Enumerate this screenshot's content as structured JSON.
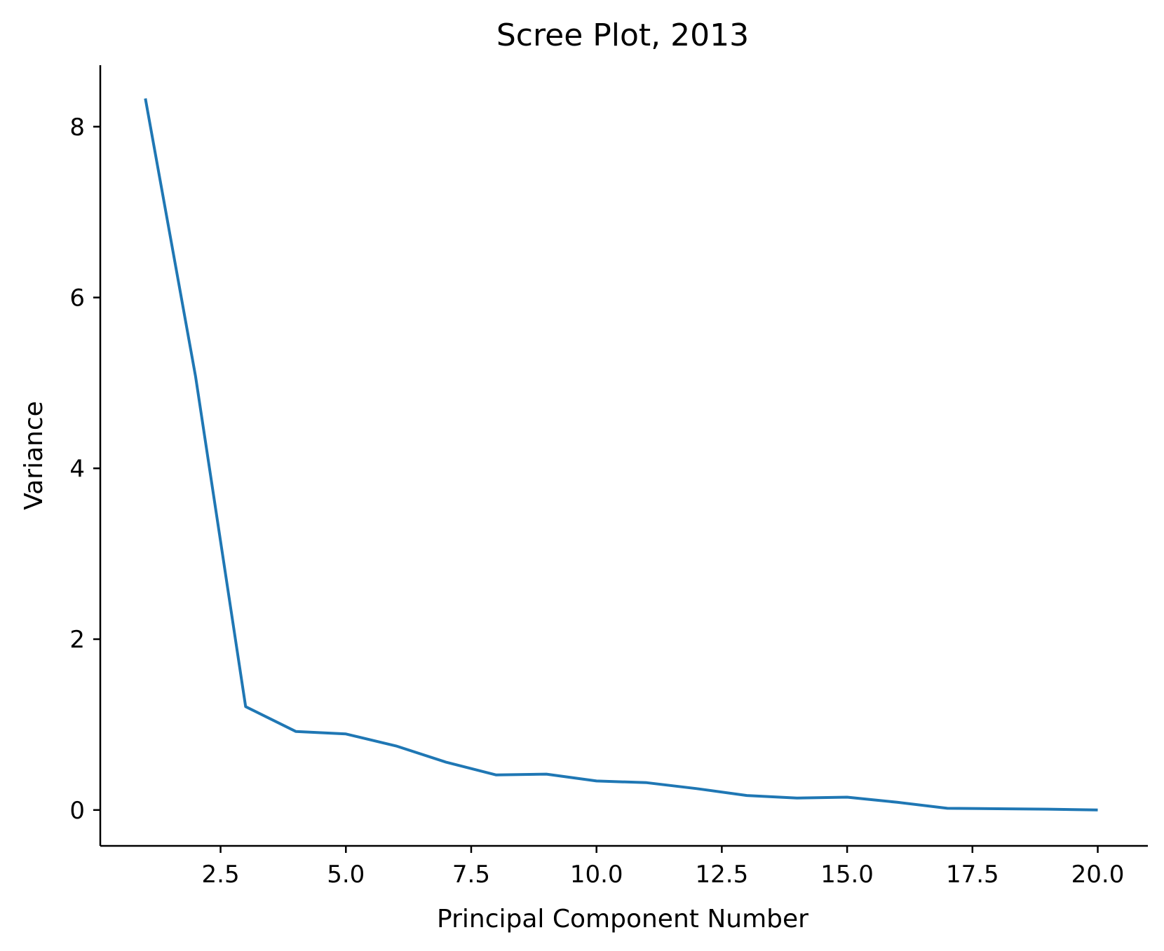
{
  "chart_data": {
    "type": "line",
    "title": "Scree Plot, 2013",
    "xlabel": "Principal Component Number",
    "ylabel": "Variance",
    "xlim": [
      0.1,
      21.0
    ],
    "ylim": [
      -0.42,
      8.72
    ],
    "xticks": [
      2.5,
      5.0,
      7.5,
      10.0,
      12.5,
      15.0,
      17.5,
      20.0
    ],
    "xtick_labels": [
      "2.5",
      "5.0",
      "7.5",
      "10.0",
      "12.5",
      "15.0",
      "17.5",
      "20.0"
    ],
    "yticks": [
      0,
      2,
      4,
      6,
      8
    ],
    "ytick_labels": [
      "0",
      "2",
      "4",
      "6",
      "8"
    ],
    "grid": false,
    "line_color": "#1f77b4",
    "series": [
      {
        "x": [
          1,
          2,
          3,
          4,
          5,
          6,
          7,
          8,
          9,
          10,
          11,
          12,
          13,
          14,
          15,
          16,
          17,
          18,
          19,
          20
        ],
        "values": [
          8.33,
          5.08,
          1.21,
          0.92,
          0.89,
          0.75,
          0.56,
          0.41,
          0.42,
          0.34,
          0.32,
          0.25,
          0.17,
          0.14,
          0.15,
          0.09,
          0.02,
          0.015,
          0.01,
          0.0
        ]
      }
    ]
  }
}
